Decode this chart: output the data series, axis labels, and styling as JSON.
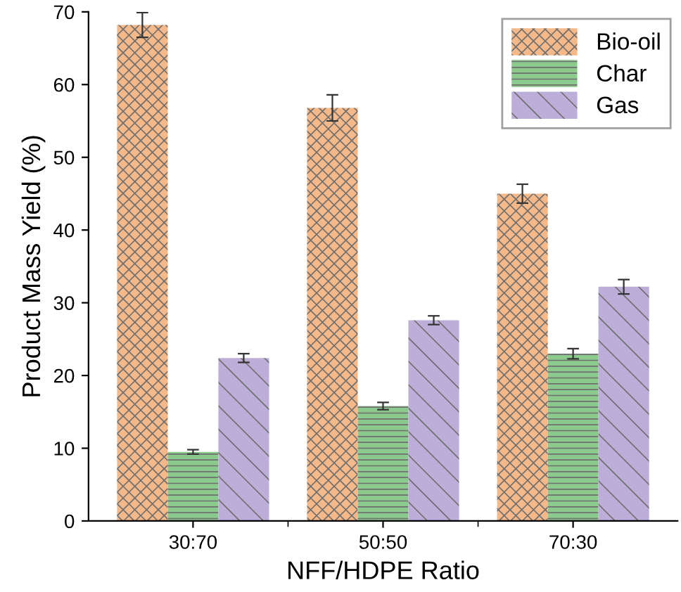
{
  "chart_data": {
    "type": "bar",
    "xlabel": "NFF/HDPE Ratio",
    "ylabel": "Product Mass Yield (%)",
    "categories": [
      "30:70",
      "50:50",
      "70:30"
    ],
    "series": [
      {
        "name": "Bio-oil",
        "color": "#f5b888",
        "values": [
          68.2,
          56.8,
          45.0
        ],
        "errors": [
          1.7,
          1.8,
          1.3
        ]
      },
      {
        "name": "Char",
        "color": "#8cc98c",
        "values": [
          9.5,
          15.8,
          23.0
        ],
        "errors": [
          0.3,
          0.5,
          0.7
        ]
      },
      {
        "name": "Gas",
        "color": "#bcaed8",
        "values": [
          22.4,
          27.6,
          32.2
        ],
        "errors": [
          0.6,
          0.6,
          1.0
        ]
      }
    ],
    "ylim": [
      0,
      70
    ],
    "yticks": [
      0,
      10,
      20,
      30,
      40,
      50,
      60,
      70
    ],
    "grid": false,
    "legend": "top right"
  }
}
